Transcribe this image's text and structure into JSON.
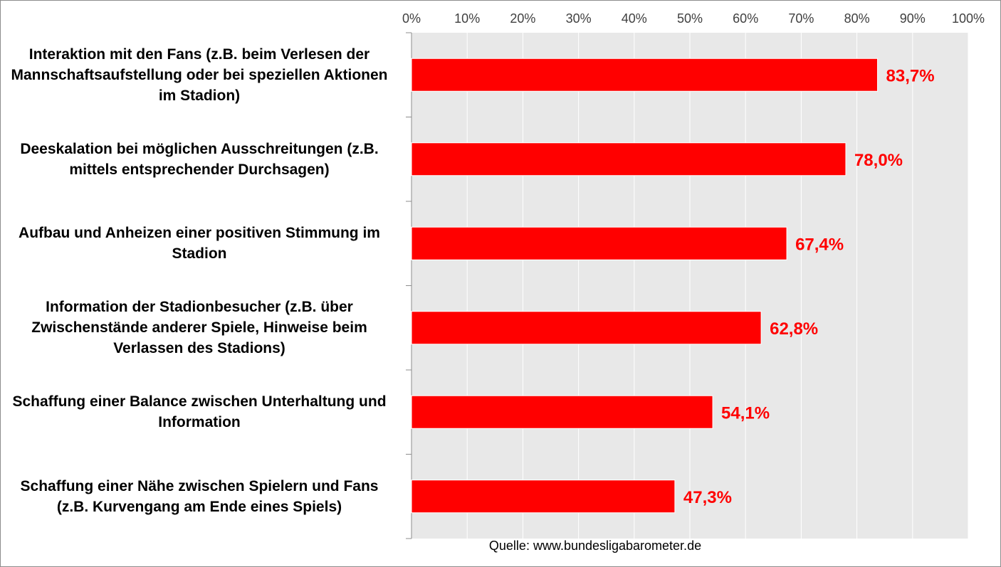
{
  "chart_data": {
    "type": "bar",
    "orientation": "horizontal",
    "categories": [
      "Interaktion mit den Fans (z.B. beim Verlesen der Mannschaftsaufstellung oder bei speziellen Aktionen im Stadion)",
      "Deeskalation bei möglichen Ausschreitungen (z.B. mittels entsprechender Durchsagen)",
      "Aufbau und Anheizen einer positiven Stimmung im Stadion",
      "Information der Stadionbesucher (z.B. über Zwischenstände anderer Spiele, Hinweise beim Verlassen des Stadions)",
      "Schaffung einer Balance zwischen Unterhaltung und Information",
      "Schaffung einer Nähe zwischen Spielern und Fans (z.B. Kurvengang am Ende eines Spiels)"
    ],
    "category_label_lines": [
      [
        "Interaktion mit den Fans (z.B. beim Verlesen der",
        "Mannschaftsaufstellung oder bei speziellen Aktionen",
        "im Stadion)"
      ],
      [
        "Deeskalation bei möglichen Ausschreitungen (z.B.",
        "mittels entsprechender Durchsagen)"
      ],
      [
        "Aufbau und Anheizen einer positiven Stimmung im",
        "Stadion"
      ],
      [
        "Information der Stadionbesucher (z.B. über",
        "Zwischenstände anderer Spiele, Hinweise beim",
        "Verlassen des Stadions)"
      ],
      [
        "Schaffung einer Balance zwischen Unterhaltung und",
        "Information"
      ],
      [
        "Schaffung einer Nähe zwischen Spielern und Fans",
        "(z.B. Kurvengang am Ende eines Spiels)"
      ]
    ],
    "values": [
      83.7,
      78.0,
      67.4,
      62.8,
      54.1,
      47.3
    ],
    "data_labels": [
      "83,7%",
      "78,0%",
      "67,4%",
      "62,8%",
      "54,1%",
      "47,3%"
    ],
    "xlim": [
      0,
      100
    ],
    "x_ticks": [
      0,
      10,
      20,
      30,
      40,
      50,
      60,
      70,
      80,
      90,
      100
    ],
    "x_tick_labels": [
      "0%",
      "10%",
      "20%",
      "30%",
      "40%",
      "50%",
      "60%",
      "70%",
      "80%",
      "90%",
      "100%"
    ],
    "x_axis_position": "top",
    "grid": true,
    "legend": "none",
    "title": "",
    "xlabel": "",
    "ylabel": "",
    "colors": {
      "bar": "#ff0000",
      "data_label": "#ff0000",
      "plot_background": "#e8e8e8",
      "gridline": "#ffffff",
      "axis": "#8c8c8c"
    }
  },
  "source_text": "Quelle: www.bundesligabarometer.de"
}
